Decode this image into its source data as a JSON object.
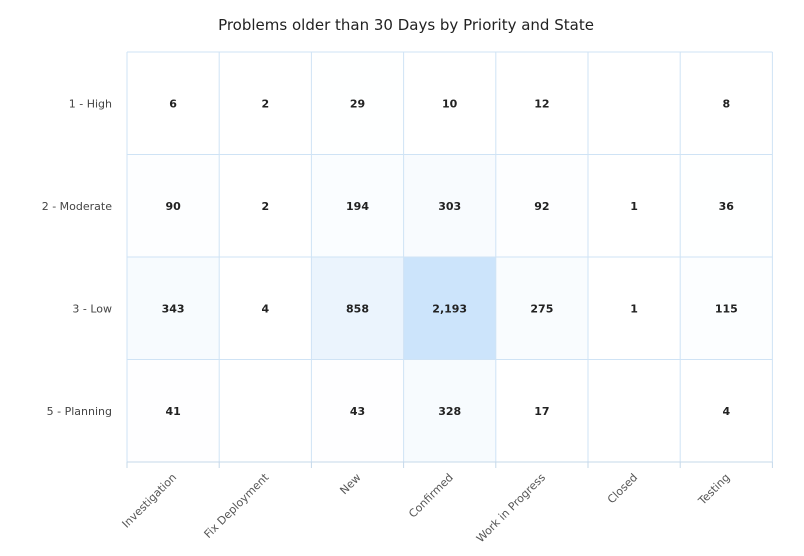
{
  "chart_data": {
    "type": "heatmap",
    "title": "Problems older than 30 Days by Priority and State",
    "x_categories": [
      "Investigation",
      "Fix Deployment",
      "New",
      "Confirmed",
      "Work in Progress",
      "Closed",
      "Testing"
    ],
    "y_categories": [
      "1 - High",
      "2 - Moderate",
      "3 - Low",
      "5 - Planning"
    ],
    "values": [
      [
        6,
        2,
        29,
        10,
        12,
        null,
        8
      ],
      [
        90,
        2,
        194,
        303,
        92,
        1,
        36
      ],
      [
        343,
        4,
        858,
        2193,
        275,
        1,
        115
      ],
      [
        41,
        null,
        43,
        328,
        17,
        null,
        4
      ]
    ],
    "color_min": "#ffffff",
    "color_max": "#cce4fb",
    "grid_color": "#cfe3f5"
  }
}
